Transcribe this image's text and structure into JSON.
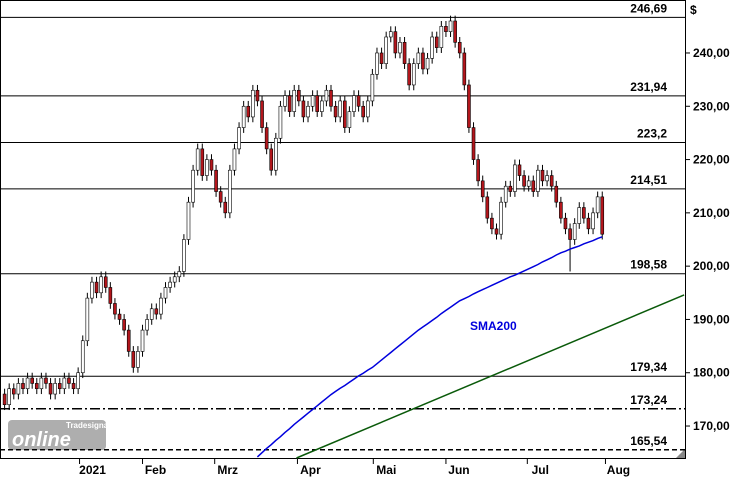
{
  "chart_data": {
    "type": "candlestick",
    "unit": "$",
    "logo": {
      "brand": "Tradesignal",
      "name": "online"
    },
    "xlim": [
      -1,
      148
    ],
    "xticks": [
      {
        "value": 16.3,
        "label": "2021"
      },
      {
        "value": 30,
        "label": "Feb"
      },
      {
        "value": 45.7,
        "label": "Mrz"
      },
      {
        "value": 63.7,
        "label": "Apr"
      },
      {
        "value": 80.2,
        "label": "Mai"
      },
      {
        "value": 96,
        "label": "Jun"
      },
      {
        "value": 113.7,
        "label": "Jul"
      },
      {
        "value": 130.7,
        "label": "Aug"
      }
    ],
    "ylim": [
      164,
      249.94
    ],
    "yticks": [
      {
        "value": 170,
        "label": "170,00"
      },
      {
        "value": 180,
        "label": "180,00"
      },
      {
        "value": 190,
        "label": "190,00"
      },
      {
        "value": 200,
        "label": "200,00"
      },
      {
        "value": 210,
        "label": "210,00"
      },
      {
        "value": 220,
        "label": "220,00"
      },
      {
        "value": 230,
        "label": "230,00"
      },
      {
        "value": 240,
        "label": "240,00"
      }
    ],
    "up_color": "#ffffff",
    "down_color": "#b3161c",
    "open": [
      176,
      174,
      177,
      176,
      178,
      177,
      179,
      178,
      177,
      179,
      178,
      176,
      178,
      177,
      179,
      178,
      177,
      180,
      186,
      194,
      197,
      195,
      198,
      196,
      193,
      191,
      190,
      188,
      184,
      181,
      184,
      188,
      190,
      192,
      191,
      194,
      196,
      197,
      198,
      199,
      205,
      212,
      218,
      222,
      217,
      220,
      218,
      214,
      212,
      210,
      218,
      222,
      226,
      230,
      228,
      233,
      231,
      226,
      222,
      218,
      224,
      230,
      232,
      229,
      233,
      231,
      228,
      230,
      232,
      229,
      231,
      233,
      230,
      228,
      231,
      226,
      229,
      232,
      230,
      228,
      231,
      236,
      240,
      238,
      243,
      244,
      240,
      242,
      238,
      234,
      238,
      240,
      237,
      239,
      243,
      241,
      245,
      244,
      246,
      242,
      240,
      234,
      226,
      220,
      216,
      213,
      209,
      207,
      206,
      212,
      215,
      214,
      219,
      217,
      215,
      216,
      214,
      218,
      216,
      217,
      215,
      212,
      209,
      207,
      205,
      208,
      211,
      209,
      207,
      210,
      213
    ],
    "high": [
      177,
      178,
      178,
      179,
      179,
      180,
      180,
      179,
      180,
      180,
      179,
      179,
      179,
      180,
      180,
      179,
      181,
      187,
      195,
      198,
      198,
      199,
      199,
      197,
      194,
      192,
      191,
      189,
      185,
      185,
      189,
      191,
      193,
      193,
      195,
      197,
      198,
      199,
      200,
      206,
      213,
      219,
      223,
      223,
      221,
      221,
      219,
      215,
      213,
      219,
      223,
      227,
      231,
      231,
      234,
      234,
      232,
      227,
      223,
      225,
      231,
      233,
      233,
      234,
      234,
      232,
      231,
      233,
      233,
      232,
      234,
      234,
      231,
      232,
      232,
      230,
      233,
      233,
      231,
      232,
      237,
      241,
      241,
      244,
      245,
      245,
      243,
      243,
      239,
      239,
      241,
      241,
      240,
      244,
      244,
      246,
      246,
      247,
      247,
      243,
      241,
      235,
      227,
      221,
      217,
      214,
      210,
      208,
      213,
      216,
      216,
      220,
      220,
      218,
      217,
      217,
      219,
      219,
      218,
      218,
      216,
      213,
      210,
      208,
      209,
      212,
      212,
      210,
      211,
      214,
      214
    ],
    "low": [
      173,
      173,
      175,
      175,
      176,
      176,
      177,
      176,
      176,
      177,
      175,
      175,
      176,
      176,
      177,
      176,
      176,
      179,
      185,
      193,
      194,
      194,
      195,
      192,
      190,
      189,
      187,
      183,
      180,
      180,
      183,
      187,
      189,
      190,
      190,
      193,
      195,
      196,
      197,
      198,
      204,
      211,
      217,
      216,
      216,
      217,
      213,
      211,
      209,
      209,
      217,
      221,
      225,
      227,
      227,
      230,
      225,
      221,
      217,
      217,
      223,
      229,
      228,
      228,
      230,
      227,
      227,
      229,
      228,
      228,
      230,
      229,
      227,
      227,
      225,
      225,
      228,
      229,
      227,
      227,
      230,
      235,
      237,
      237,
      242,
      239,
      239,
      237,
      233,
      233,
      237,
      236,
      236,
      238,
      240,
      240,
      243,
      243,
      241,
      239,
      233,
      225,
      219,
      215,
      212,
      208,
      206,
      205,
      205,
      211,
      213,
      213,
      216,
      214,
      214,
      213,
      213,
      215,
      215,
      214,
      211,
      208,
      206,
      199,
      204,
      207,
      208,
      206,
      206,
      209,
      205
    ],
    "close": [
      174,
      177,
      176,
      178,
      177,
      179,
      178,
      177,
      179,
      178,
      176,
      178,
      177,
      179,
      178,
      177,
      180,
      186,
      194,
      197,
      195,
      198,
      196,
      193,
      191,
      190,
      188,
      184,
      181,
      184,
      188,
      190,
      192,
      191,
      194,
      196,
      197,
      198,
      199,
      205,
      212,
      218,
      222,
      217,
      220,
      218,
      214,
      212,
      210,
      218,
      222,
      226,
      230,
      228,
      233,
      231,
      226,
      222,
      218,
      224,
      230,
      232,
      229,
      233,
      231,
      228,
      230,
      232,
      229,
      231,
      233,
      230,
      228,
      231,
      226,
      229,
      232,
      230,
      228,
      231,
      236,
      240,
      238,
      243,
      244,
      240,
      242,
      238,
      234,
      238,
      240,
      237,
      239,
      243,
      241,
      245,
      244,
      246,
      242,
      240,
      234,
      226,
      220,
      216,
      213,
      209,
      207,
      206,
      212,
      215,
      214,
      219,
      217,
      215,
      216,
      214,
      218,
      216,
      217,
      215,
      212,
      209,
      207,
      205,
      208,
      211,
      209,
      207,
      210,
      213,
      206
    ],
    "sma": {
      "label": "SMA200",
      "color": "#0000dd",
      "values": [
        null,
        null,
        null,
        null,
        null,
        null,
        null,
        null,
        null,
        null,
        null,
        null,
        null,
        null,
        null,
        null,
        null,
        null,
        null,
        null,
        null,
        null,
        null,
        null,
        null,
        null,
        null,
        null,
        null,
        null,
        null,
        null,
        null,
        null,
        null,
        null,
        null,
        null,
        null,
        null,
        null,
        null,
        null,
        null,
        null,
        null,
        null,
        null,
        null,
        null,
        null,
        null,
        null,
        null,
        null,
        164.2,
        165,
        165.8,
        166.5,
        167.3,
        168,
        168.8,
        169.5,
        170.3,
        171,
        171.7,
        172.4,
        173.1,
        173.8,
        174.5,
        175.2,
        175.9,
        176.5,
        177.1,
        177.6,
        178.2,
        178.8,
        179.4,
        179.9,
        180.5,
        181,
        181.7,
        182.4,
        183.1,
        183.8,
        184.5,
        185.2,
        185.9,
        186.6,
        187.3,
        188,
        188.6,
        189.2,
        189.8,
        190.4,
        191.1,
        191.7,
        192.3,
        192.9,
        193.5,
        193.9,
        194.3,
        194.8,
        195.2,
        195.6,
        196,
        196.4,
        196.8,
        197.2,
        197.6,
        198,
        198.3,
        198.7,
        199.1,
        199.5,
        199.9,
        200.3,
        200.8,
        201.2,
        201.6,
        202.1,
        202.5,
        202.8,
        203.2,
        203.5,
        203.8,
        204.2,
        204.5,
        204.8,
        205.2,
        205.5
      ]
    },
    "trendline": {
      "color": "#0a5a0a",
      "x": [
        63.5,
        147.8
      ],
      "values": [
        164,
        194.6
      ]
    },
    "levels": [
      {
        "value": 246.69,
        "label": "246,69",
        "style": "solid"
      },
      {
        "value": 231.94,
        "label": "231,94",
        "style": "solid"
      },
      {
        "value": 223.2,
        "label": "223,2",
        "style": "solid"
      },
      {
        "value": 214.51,
        "label": "214,51",
        "style": "solid"
      },
      {
        "value": 198.58,
        "label": "198,58",
        "style": "solid"
      },
      {
        "value": 179.34,
        "label": "179,34",
        "style": "solid"
      },
      {
        "value": 173.24,
        "label": "173,24",
        "style": "dashdot"
      },
      {
        "value": 165.54,
        "label": "165,54",
        "style": "dashed"
      }
    ]
  }
}
